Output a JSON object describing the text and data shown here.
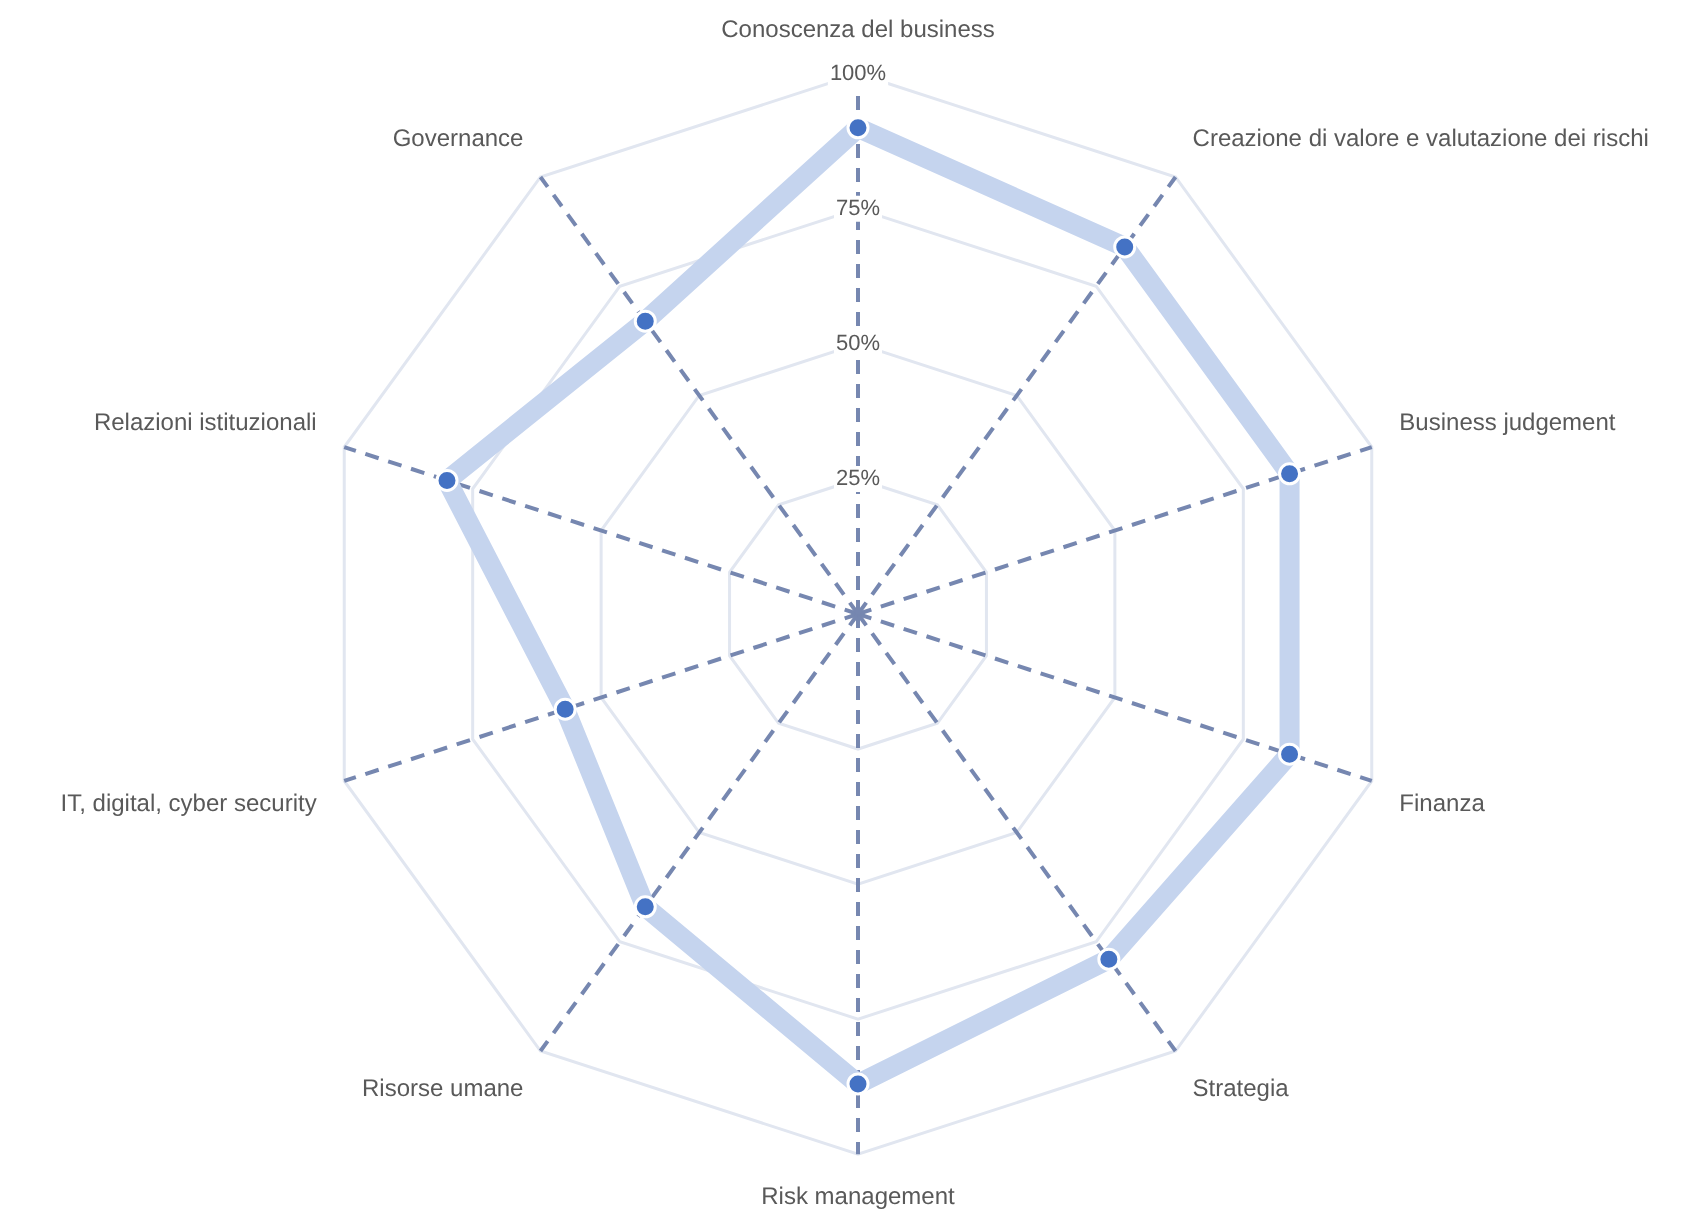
{
  "chart_data": {
    "type": "radar",
    "categories": [
      "Conoscenza del business",
      "Creazione di valore e valutazione dei rischi",
      "Business judgement",
      "Finanza",
      "Strategia",
      "Risk management",
      "Risorse umane",
      "IT, digital, cyber security",
      "Relazioni istituzionali",
      "Governance"
    ],
    "series": [
      {
        "color": "#c5d4ee",
        "values": [
          90,
          84,
          84,
          84,
          79,
          87,
          67,
          57,
          80,
          67
        ]
      }
    ],
    "ylim": [
      0,
      100
    ],
    "yticks": [
      {
        "value": 25,
        "label": "25%"
      },
      {
        "value": 50,
        "label": "50%"
      },
      {
        "value": 75,
        "label": "75%"
      },
      {
        "value": 100,
        "label": "100%"
      }
    ],
    "grid": true,
    "legend": false,
    "marker": "circle",
    "line_style": "solid"
  }
}
